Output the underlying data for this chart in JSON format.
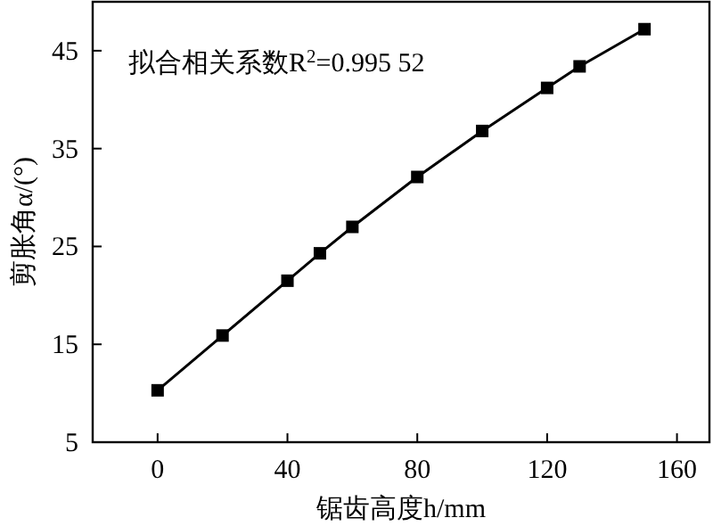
{
  "chart_data": {
    "type": "line",
    "xlabel": "锯齿高度h/mm",
    "ylabel": "剪胀角α/(°)",
    "annotations": [
      "拟合相关系数R$^{2}$=0.995 52"
    ],
    "x": [
      0,
      20,
      40,
      50,
      60,
      80,
      100,
      120,
      130,
      150
    ],
    "series": [
      {
        "color": "#000000",
        "values": [
          10.3,
          15.9,
          21.5,
          24.3,
          27.0,
          32.1,
          36.8,
          41.2,
          43.4,
          47.2
        ]
      }
    ],
    "xlim": [
      -20,
      170
    ],
    "xticks": [
      0,
      40,
      80,
      120,
      160
    ],
    "ylim": [
      5,
      50
    ],
    "yticks": [
      5,
      15,
      25,
      35,
      45
    ],
    "marker": "square",
    "line_style": "solid"
  }
}
